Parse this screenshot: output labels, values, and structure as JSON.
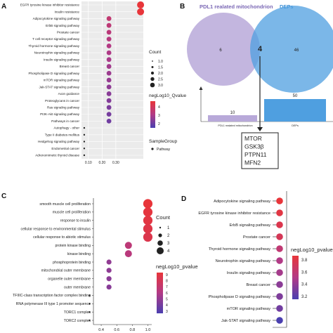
{
  "panels": {
    "A": {
      "letter": "A",
      "legend": {
        "count_title": "Count",
        "count_levels": [
          "1.0",
          "1.5",
          "2.0",
          "2.5",
          "3.0"
        ],
        "color_title": "negLog10_Qvalue",
        "color_ticks": [
          "4",
          "3",
          "2"
        ],
        "group_title": "SampleGroup",
        "group_item": "Pathway"
      }
    },
    "B": {
      "letter": "B",
      "left_set": "PDL1 realated mitochondrion",
      "right_set": "DEPs",
      "left_only": "6",
      "overlap": "4",
      "right_only": "46",
      "bar_left_value": "10",
      "bar_right_value": "50",
      "bar_left_label": "PDL1 realated mitochondrion",
      "bar_right_label": "DEPs",
      "genes": [
        "MTOR",
        "GSK3β",
        "PTPN11",
        "MFN2"
      ]
    },
    "C": {
      "letter": "C",
      "legend": {
        "count_title": "Count",
        "count_levels": [
          "1",
          "2",
          "3",
          "4"
        ],
        "color_title": "negLog10_pvalue",
        "color_ticks": [
          "9",
          "8",
          "7",
          "6",
          "5",
          "4",
          "3"
        ]
      }
    },
    "D": {
      "letter": "D",
      "legend": {
        "color_title": "negLog10_pvalue",
        "color_ticks": [
          "3.8",
          "3.6",
          "3.4",
          "3.2"
        ]
      }
    }
  },
  "chart_data": [
    {
      "panel": "A",
      "type": "scatter",
      "xlim": [
        0.05,
        0.5
      ],
      "x_ticks": [
        "0.10",
        "0.20",
        "0.30"
      ],
      "categories": [
        "EGFR tyrosine kinase inhibitor resistance",
        "Insulin resistance",
        "Adipocytokine signaling pathway",
        "ErbB signaling pathway",
        "Prostate cancer",
        "T cell receptor signaling pathway",
        "Thyroid hormone signaling pathway",
        "Neurotrophin signaling pathway",
        "Insulin signaling pathway",
        "Breast cancer",
        "Phospholipase D signaling pathway",
        "mTOR signaling pathway",
        "Jak-STAT signaling pathway",
        "Axon guidance",
        "Proteoglycans in cancer",
        "Ras signaling pathway",
        "PI3K-Akt signaling pathway",
        "Pathways in cancer",
        "Autophagy - other",
        "Type II diabetes mellitus",
        "Hedgehog signaling pathway",
        "Endometrial cancer",
        "Adrenomimetic thyroid disease"
      ],
      "values": [
        0.48,
        0.48,
        0.25,
        0.25,
        0.25,
        0.25,
        0.25,
        0.25,
        0.25,
        0.25,
        0.25,
        0.25,
        0.25,
        0.25,
        0.25,
        0.25,
        0.25,
        0.25,
        0.07,
        0.07,
        0.07,
        0.07,
        0.07
      ],
      "count": [
        3,
        3,
        2,
        2,
        2,
        2,
        2,
        2,
        2,
        2,
        2,
        2,
        2,
        2,
        2,
        2,
        2,
        2,
        1,
        1,
        1,
        1,
        1
      ],
      "color_value": [
        4.8,
        4.8,
        3.6,
        3.5,
        3.4,
        3.3,
        3.2,
        3.1,
        3.0,
        2.9,
        2.8,
        2.7,
        2.6,
        2.5,
        2.4,
        2.3,
        2.2,
        2.1,
        1.5,
        1.5,
        1.5,
        1.5,
        1.5
      ],
      "color_range": [
        1.5,
        4.8
      ]
    },
    {
      "panel": "C",
      "type": "scatter",
      "xlim": [
        0.3,
        1.05
      ],
      "x_ticks": [
        "0.4",
        "0.6",
        "0.8",
        "1.0"
      ],
      "categories": [
        "smooth muscle cell proliferation",
        "muscle cell proliferation",
        "response to insulin",
        "cellular response to environmental stimulus",
        "cellular response to abiotic stimulus",
        "protein kinase binding",
        "kinase binding",
        "phosphoprotein binding",
        "mitochondrial outer membrane",
        "organelle outer membrane",
        "outer membrane",
        "TFIIIC-class transcription factor complex binding",
        "RNA polymerase III type 1 promoter sequence",
        "TORC1 complex",
        "TORC2 complex"
      ],
      "values": [
        1.0,
        1.0,
        1.0,
        1.0,
        1.0,
        0.75,
        0.75,
        0.5,
        0.5,
        0.5,
        0.5,
        0.25,
        0.25,
        0.25,
        0.25
      ],
      "count": [
        4,
        4,
        4,
        4,
        4,
        3,
        3,
        2,
        2,
        2,
        2,
        1,
        1,
        1,
        1
      ],
      "color_value": [
        9.2,
        9.0,
        8.8,
        8.6,
        8.4,
        6.5,
        6.3,
        4.8,
        4.7,
        4.6,
        4.5,
        2.5,
        2.5,
        2.5,
        2.5
      ],
      "color_range": [
        2.5,
        9.2
      ]
    },
    {
      "panel": "D",
      "type": "scatter",
      "categories": [
        "Adipocytokine signaling pathway",
        "EGFR tyrosine kinase inhibitor resistance",
        "ErbB signaling pathway",
        "Prostate cancer",
        "Thyroid hormone signaling pathway",
        "Neurotrophin signaling pathway",
        "Insulin signaling pathway",
        "Breast cancer",
        "Phospholipase D signaling pathway",
        "mTOR signaling pathway",
        "Jak-STAT signaling pathway"
      ],
      "values": [
        1,
        1,
        1,
        1,
        1,
        1,
        1,
        1,
        1,
        1,
        1
      ],
      "color_value": [
        3.9,
        3.85,
        3.8,
        3.75,
        3.6,
        3.5,
        3.45,
        3.35,
        3.3,
        3.25,
        3.1
      ],
      "color_range": [
        3.1,
        3.9
      ]
    }
  ]
}
